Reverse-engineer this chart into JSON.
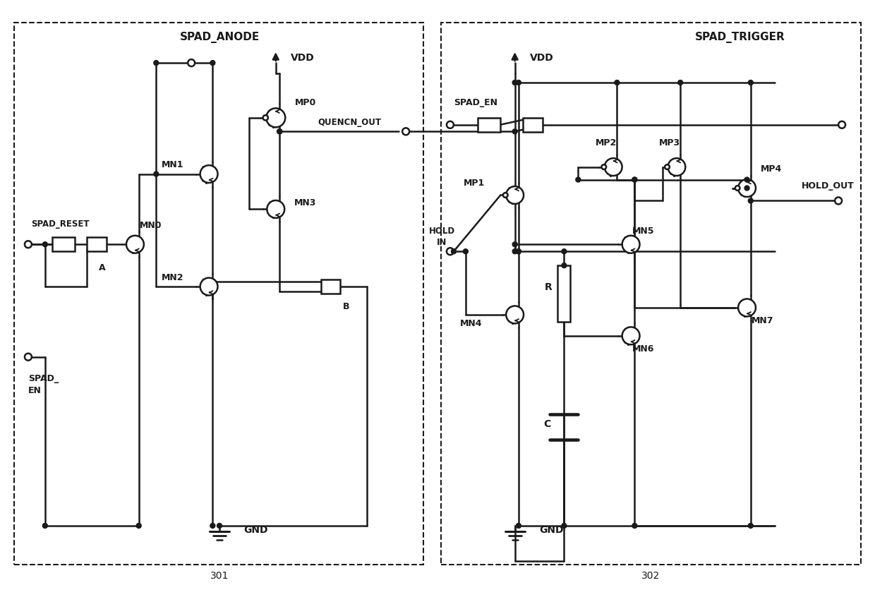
{
  "fig_width": 12.4,
  "fig_height": 8.37,
  "bg_color": "#ffffff",
  "line_color": "#1a1a1a",
  "label_301": "301",
  "label_302": "302",
  "label_spad_anode": "SPAD_ANODE",
  "label_vdd_left": "VDD",
  "label_vdd_right": "VDD",
  "label_gnd_left": "GND",
  "label_gnd_right": "GND",
  "label_spad_reset": "SPAD_RESET",
  "label_spad_en_left1": "SPAD_",
  "label_spad_en_left2": "EN",
  "label_spad_en_right": "SPAD_EN",
  "label_spad_trigger": "SPAD_TRIGGER",
  "label_quencn_out": "QUENCN_OUT",
  "label_hold_out": "HOLD_OUT",
  "label_hold_in1": "HOLD",
  "label_hold_in2": "IN",
  "label_mp0": "MP0",
  "label_mn0": "MN0",
  "label_mn1": "MN1",
  "label_mn2": "MN2",
  "label_mn3": "MN3",
  "label_A": "A",
  "label_B": "B",
  "label_mp1": "MP1",
  "label_mp2": "MP2",
  "label_mp3": "MP3",
  "label_mp4": "MP4",
  "label_mn4": "MN4",
  "label_mn5": "MN5",
  "label_mn6": "MN6",
  "label_mn7": "MN7",
  "label_R": "R",
  "label_C": "C"
}
